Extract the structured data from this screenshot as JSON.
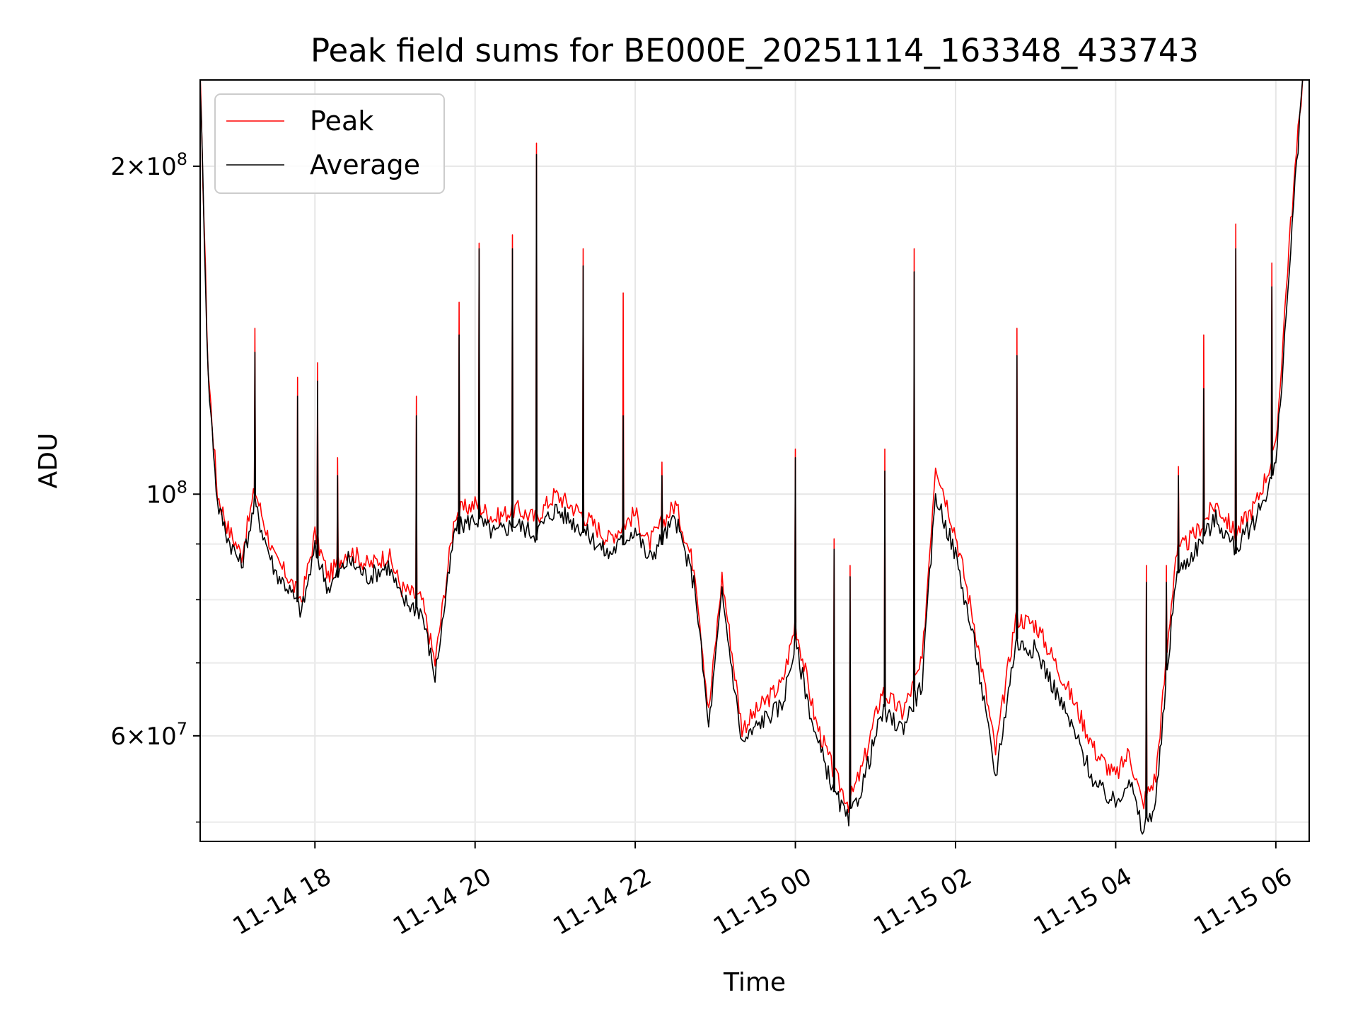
{
  "chart_data": {
    "type": "line",
    "title": "Peak field sums for BE000E_20251114_163348_433743",
    "xlabel": "Time",
    "ylabel": "ADU",
    "y_scale": "log",
    "grid": true,
    "legend_position": "top-left",
    "x_range": [
      "2025-11-14T16:34",
      "2025-11-15T06:25"
    ],
    "ylim": [
      48000000,
      240000000
    ],
    "x_ticks": [
      {
        "value": "2025-11-14T18:00",
        "label": "11-14 18"
      },
      {
        "value": "2025-11-14T20:00",
        "label": "11-14 20"
      },
      {
        "value": "2025-11-14T22:00",
        "label": "11-14 22"
      },
      {
        "value": "2025-11-15T00:00",
        "label": "11-15 00"
      },
      {
        "value": "2025-11-15T02:00",
        "label": "11-15 02"
      },
      {
        "value": "2025-11-15T04:00",
        "label": "11-15 04"
      },
      {
        "value": "2025-11-15T06:00",
        "label": "11-15 06"
      }
    ],
    "y_major_ticks": [
      {
        "value": 60000000,
        "mantissa": "6",
        "exponent": "7"
      },
      {
        "value": 100000000,
        "mantissa": "",
        "exponent": "8"
      },
      {
        "value": 200000000,
        "mantissa": "2",
        "exponent": "8"
      }
    ],
    "y_minor_ticks": [
      50000000,
      70000000,
      80000000,
      90000000
    ],
    "tick_times": [
      "10",
      "×"
    ],
    "series": [
      {
        "name": "Peak",
        "color": "#ff0000",
        "x": [
          "2025-11-14T16:34",
          "2025-11-14T16:40",
          "2025-11-14T16:47",
          "2025-11-14T16:55",
          "2025-11-14T17:05",
          "2025-11-14T17:15",
          "2025-11-14T17:20",
          "2025-11-14T17:30",
          "2025-11-14T17:40",
          "2025-11-14T17:50",
          "2025-11-14T18:00",
          "2025-11-14T18:10",
          "2025-11-14T18:25",
          "2025-11-14T18:40",
          "2025-11-14T18:55",
          "2025-11-14T19:05",
          "2025-11-14T19:20",
          "2025-11-14T19:30",
          "2025-11-14T19:45",
          "2025-11-14T20:00",
          "2025-11-14T20:15",
          "2025-11-14T20:30",
          "2025-11-14T20:45",
          "2025-11-14T21:00",
          "2025-11-14T21:20",
          "2025-11-14T21:40",
          "2025-11-14T22:00",
          "2025-11-14T22:10",
          "2025-11-14T22:30",
          "2025-11-14T22:45",
          "2025-11-14T22:55",
          "2025-11-14T23:05",
          "2025-11-14T23:20",
          "2025-11-14T23:35",
          "2025-11-14T23:50",
          "2025-11-15T00:00",
          "2025-11-15T00:15",
          "2025-11-15T00:30",
          "2025-11-15T00:40",
          "2025-11-15T00:50",
          "2025-11-15T01:05",
          "2025-11-15T01:20",
          "2025-11-15T01:35",
          "2025-11-15T01:45",
          "2025-11-15T02:00",
          "2025-11-15T02:15",
          "2025-11-15T02:30",
          "2025-11-15T02:45",
          "2025-11-15T03:00",
          "2025-11-15T03:15",
          "2025-11-15T03:30",
          "2025-11-15T03:45",
          "2025-11-15T04:00",
          "2025-11-15T04:10",
          "2025-11-15T04:20",
          "2025-11-15T04:30",
          "2025-11-15T04:45",
          "2025-11-15T05:00",
          "2025-11-15T05:15",
          "2025-11-15T05:30",
          "2025-11-15T05:45",
          "2025-11-15T06:00",
          "2025-11-15T06:10",
          "2025-11-15T06:20"
        ],
        "values": [
          240000000,
          130000000,
          100000000,
          93000000,
          88000000,
          101000000,
          96000000,
          87000000,
          84000000,
          80000000,
          92000000,
          84000000,
          89000000,
          86000000,
          88000000,
          82000000,
          80000000,
          70000000,
          96000000,
          98000000,
          95000000,
          97000000,
          95000000,
          100000000,
          96000000,
          91000000,
          96000000,
          90000000,
          98000000,
          85000000,
          63000000,
          84000000,
          61000000,
          64000000,
          67000000,
          76000000,
          62000000,
          55000000,
          52000000,
          56000000,
          66000000,
          63000000,
          70000000,
          107000000,
          92000000,
          75000000,
          58000000,
          77000000,
          76000000,
          70000000,
          64000000,
          58000000,
          55000000,
          58000000,
          52000000,
          55000000,
          88000000,
          92000000,
          98000000,
          92000000,
          98000000,
          110000000,
          170000000,
          240000000
        ]
      },
      {
        "name": "Average",
        "color": "#000000",
        "x": [
          "2025-11-14T16:34",
          "2025-11-14T16:40",
          "2025-11-14T16:47",
          "2025-11-14T16:55",
          "2025-11-14T17:05",
          "2025-11-14T17:15",
          "2025-11-14T17:20",
          "2025-11-14T17:30",
          "2025-11-14T17:40",
          "2025-11-14T17:50",
          "2025-11-14T18:00",
          "2025-11-14T18:10",
          "2025-11-14T18:25",
          "2025-11-14T18:40",
          "2025-11-14T18:55",
          "2025-11-14T19:05",
          "2025-11-14T19:20",
          "2025-11-14T19:30",
          "2025-11-14T19:45",
          "2025-11-14T20:00",
          "2025-11-14T20:15",
          "2025-11-14T20:30",
          "2025-11-14T20:45",
          "2025-11-14T21:00",
          "2025-11-14T21:20",
          "2025-11-14T21:40",
          "2025-11-14T22:00",
          "2025-11-14T22:10",
          "2025-11-14T22:30",
          "2025-11-14T22:45",
          "2025-11-14T22:55",
          "2025-11-14T23:05",
          "2025-11-14T23:20",
          "2025-11-14T23:35",
          "2025-11-14T23:50",
          "2025-11-15T00:00",
          "2025-11-15T00:15",
          "2025-11-15T00:30",
          "2025-11-15T00:40",
          "2025-11-15T00:50",
          "2025-11-15T01:05",
          "2025-11-15T01:20",
          "2025-11-15T01:35",
          "2025-11-15T01:45",
          "2025-11-15T02:00",
          "2025-11-15T02:15",
          "2025-11-15T02:30",
          "2025-11-15T02:45",
          "2025-11-15T03:00",
          "2025-11-15T03:15",
          "2025-11-15T03:30",
          "2025-11-15T03:45",
          "2025-11-15T04:00",
          "2025-11-15T04:10",
          "2025-11-15T04:20",
          "2025-11-15T04:30",
          "2025-11-15T04:45",
          "2025-11-15T05:00",
          "2025-11-15T05:15",
          "2025-11-15T05:30",
          "2025-11-15T05:45",
          "2025-11-15T06:00",
          "2025-11-15T06:10",
          "2025-11-15T06:20"
        ],
        "values": [
          240000000,
          128000000,
          98000000,
          91000000,
          86000000,
          98000000,
          93000000,
          85000000,
          82000000,
          78000000,
          89000000,
          82000000,
          87000000,
          84000000,
          86000000,
          80000000,
          78000000,
          68000000,
          93000000,
          95000000,
          92000000,
          94000000,
          92000000,
          97000000,
          93000000,
          88000000,
          93000000,
          87000000,
          95000000,
          82000000,
          61000000,
          81000000,
          59000000,
          62000000,
          64000000,
          73000000,
          60000000,
          53000000,
          50000000,
          54000000,
          63000000,
          61000000,
          67000000,
          100000000,
          88000000,
          72000000,
          55000000,
          73000000,
          72000000,
          66000000,
          60000000,
          54000000,
          52000000,
          55000000,
          49000000,
          52000000,
          84000000,
          89000000,
          95000000,
          89000000,
          95000000,
          106000000,
          160000000,
          240000000
        ]
      }
    ],
    "spikes": [
      {
        "x": "2025-11-14T17:15",
        "peak": 142000000,
        "average": 135000000
      },
      {
        "x": "2025-11-14T17:47",
        "peak": 128000000,
        "average": 123000000
      },
      {
        "x": "2025-11-14T18:02",
        "peak": 132000000,
        "average": 127000000
      },
      {
        "x": "2025-11-14T18:17",
        "peak": 108000000,
        "average": 104000000
      },
      {
        "x": "2025-11-14T19:16",
        "peak": 123000000,
        "average": 118000000
      },
      {
        "x": "2025-11-14T19:48",
        "peak": 150000000,
        "average": 140000000
      },
      {
        "x": "2025-11-14T20:03",
        "peak": 170000000,
        "average": 168000000
      },
      {
        "x": "2025-11-14T20:28",
        "peak": 173000000,
        "average": 168000000
      },
      {
        "x": "2025-11-14T20:46",
        "peak": 210000000,
        "average": 205000000
      },
      {
        "x": "2025-11-14T21:21",
        "peak": 168000000,
        "average": 162000000
      },
      {
        "x": "2025-11-14T21:51",
        "peak": 153000000,
        "average": 118000000
      },
      {
        "x": "2025-11-14T22:20",
        "peak": 107000000,
        "average": 104000000
      },
      {
        "x": "2025-11-15T00:00",
        "peak": 110000000,
        "average": 108000000
      },
      {
        "x": "2025-11-15T00:29",
        "peak": 91000000,
        "average": 89000000
      },
      {
        "x": "2025-11-15T00:41",
        "peak": 86000000,
        "average": 84000000
      },
      {
        "x": "2025-11-15T01:07",
        "peak": 110000000,
        "average": 105000000
      },
      {
        "x": "2025-11-15T01:29",
        "peak": 168000000,
        "average": 160000000
      },
      {
        "x": "2025-11-15T02:46",
        "peak": 142000000,
        "average": 134000000
      },
      {
        "x": "2025-11-15T04:23",
        "peak": 86000000,
        "average": 83000000
      },
      {
        "x": "2025-11-15T04:38",
        "peak": 86000000,
        "average": 83000000
      },
      {
        "x": "2025-11-15T04:47",
        "peak": 106000000,
        "average": 104000000
      },
      {
        "x": "2025-11-15T05:06",
        "peak": 140000000,
        "average": 125000000
      },
      {
        "x": "2025-11-15T05:30",
        "peak": 177000000,
        "average": 168000000
      },
      {
        "x": "2025-11-15T05:57",
        "peak": 163000000,
        "average": 155000000
      }
    ]
  }
}
